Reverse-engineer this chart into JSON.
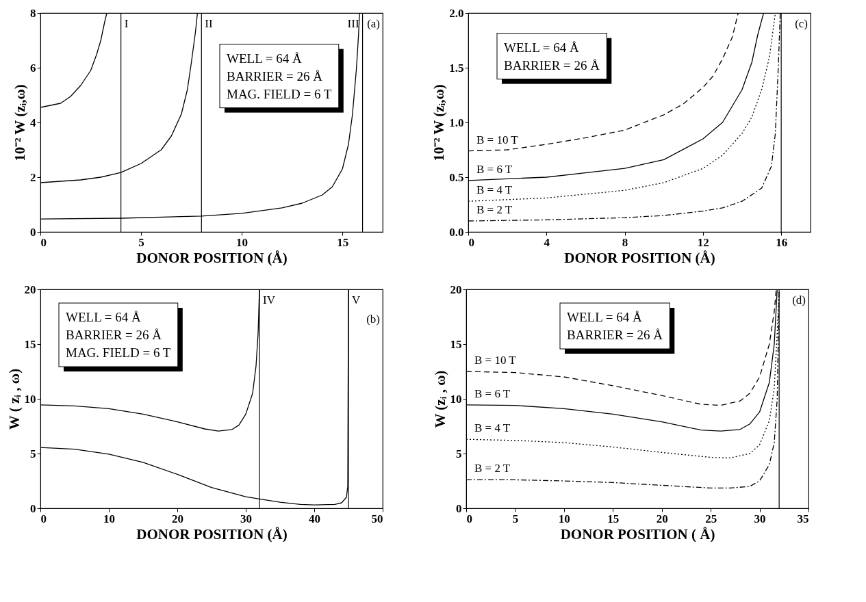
{
  "chart_data": [
    {
      "type": "line",
      "xlabel": "DONOR POSITION (Å)",
      "ylabel": "10⁻² W (zᵢ,ω)",
      "xlim": [
        0,
        17
      ],
      "ylim": [
        0,
        8
      ],
      "xticks": [
        0,
        5,
        10,
        15
      ],
      "yticks": [
        0,
        2,
        4,
        6,
        8
      ],
      "grid": false,
      "marker": "none",
      "annotations": [
        "WELL = 64 Å",
        "BARRIER = 26 Å",
        "MAG. FIELD = 6 T",
        "(a)"
      ],
      "ref_lines": [
        {
          "axis": "x",
          "value": 4,
          "label": "I"
        },
        {
          "axis": "x",
          "value": 8,
          "label": "II"
        },
        {
          "axis": "x",
          "value": 16,
          "label": "III"
        }
      ],
      "series": [
        {
          "color": "#000000",
          "line_style": "solid",
          "x": [
            0,
            1,
            1.5,
            2,
            2.5,
            2.8,
            3.0,
            3.2,
            3.3
          ],
          "values": [
            4.55,
            4.7,
            4.95,
            5.35,
            5.9,
            6.5,
            7.0,
            7.7,
            8
          ]
        },
        {
          "color": "#000000",
          "line_style": "solid",
          "x": [
            0,
            2,
            3,
            4,
            5,
            6,
            6.5,
            7,
            7.3,
            7.5,
            7.7,
            7.8
          ],
          "values": [
            1.8,
            1.9,
            2.0,
            2.17,
            2.5,
            3.0,
            3.5,
            4.3,
            5.2,
            6.2,
            7.3,
            8
          ]
        },
        {
          "color": "#000000",
          "line_style": "solid",
          "x": [
            0,
            4,
            8,
            10,
            12,
            13,
            14,
            14.5,
            15,
            15.3,
            15.5,
            15.7,
            15.8,
            15.85
          ],
          "values": [
            0.47,
            0.5,
            0.58,
            0.68,
            0.88,
            1.05,
            1.35,
            1.65,
            2.3,
            3.2,
            4.3,
            6,
            7.2,
            8
          ]
        }
      ]
    },
    {
      "type": "line",
      "xlabel": "DONOR POSITION (Å)",
      "ylabel": "10⁻² W (zᵢ,ω)",
      "xlim": [
        0,
        17.5
      ],
      "ylim": [
        0,
        2
      ],
      "xticks": [
        0,
        4,
        8,
        12,
        16
      ],
      "yticks": [
        {
          "value": 0,
          "label": "0.0"
        },
        0.5,
        {
          "value": 1,
          "label": "1.0"
        },
        1.5,
        {
          "value": 2,
          "label": "2.0"
        }
      ],
      "grid": false,
      "marker": "none",
      "annotations": [
        "WELL = 64 Å",
        "BARRIER = 26 Å",
        "(c)"
      ],
      "ref_lines": [
        {
          "axis": "x",
          "value": 16
        }
      ],
      "series": [
        {
          "name": "B = 10 T",
          "color": "#000000",
          "line_style": "dashed",
          "x": [
            0,
            2,
            4,
            6,
            8,
            10,
            11,
            12,
            12.5,
            13,
            13.5,
            13.8
          ],
          "values": [
            0.74,
            0.75,
            0.8,
            0.86,
            0.93,
            1.07,
            1.17,
            1.32,
            1.42,
            1.58,
            1.78,
            2.0
          ]
        },
        {
          "name": "B = 6 T",
          "color": "#000000",
          "line_style": "solid",
          "x": [
            0,
            4,
            8,
            10,
            12,
            13,
            14,
            14.5,
            14.8,
            15.1
          ],
          "values": [
            0.47,
            0.5,
            0.58,
            0.66,
            0.85,
            1.0,
            1.3,
            1.55,
            1.8,
            2.0
          ]
        },
        {
          "name": "B = 4 T",
          "color": "#000000",
          "line_style": "dotted",
          "x": [
            0,
            4,
            8,
            10,
            12,
            13,
            14,
            14.5,
            15,
            15.4,
            15.7
          ],
          "values": [
            0.28,
            0.31,
            0.38,
            0.45,
            0.58,
            0.7,
            0.9,
            1.05,
            1.3,
            1.6,
            2.0
          ]
        },
        {
          "name": "B = 2 T",
          "color": "#000000",
          "line_style": "dashdot",
          "x": [
            0,
            4,
            8,
            10,
            12,
            13,
            14,
            15,
            15.5,
            15.7,
            15.85,
            15.95
          ],
          "values": [
            0.1,
            0.11,
            0.13,
            0.15,
            0.19,
            0.22,
            0.28,
            0.4,
            0.6,
            0.9,
            1.5,
            2.0
          ]
        }
      ]
    },
    {
      "type": "line",
      "xlabel": "DONOR POSITION (Å)",
      "ylabel": "W ( zᵢ , ω)",
      "xlim": [
        0,
        50
      ],
      "ylim": [
        0,
        20
      ],
      "xticks": [
        0,
        10,
        20,
        30,
        40,
        50
      ],
      "yticks": [
        0,
        5,
        10,
        15,
        20
      ],
      "grid": false,
      "marker": "none",
      "annotations": [
        "WELL = 64 Å",
        "BARRIER = 26 Å",
        "MAG. FIELD = 6 T",
        "(b)"
      ],
      "ref_lines": [
        {
          "axis": "x",
          "value": 32,
          "label": "IV"
        },
        {
          "axis": "x",
          "value": 45,
          "label": "V"
        }
      ],
      "series": [
        {
          "color": "#000000",
          "line_style": "solid",
          "x": [
            0,
            5,
            10,
            15,
            20,
            24,
            26,
            28,
            29,
            30,
            31,
            31.5,
            31.8,
            32
          ],
          "values": [
            9.45,
            9.35,
            9.1,
            8.6,
            7.9,
            7.25,
            7.05,
            7.2,
            7.6,
            8.6,
            10.5,
            13,
            16,
            20
          ]
        },
        {
          "color": "#000000",
          "line_style": "solid",
          "x": [
            0,
            5,
            10,
            15,
            20,
            25,
            30,
            32,
            35,
            38,
            40,
            43,
            44,
            44.7,
            44.9,
            45
          ],
          "values": [
            5.55,
            5.4,
            4.95,
            4.2,
            3.1,
            1.9,
            1.05,
            0.85,
            0.55,
            0.35,
            0.3,
            0.35,
            0.5,
            1.0,
            2,
            20
          ]
        }
      ]
    },
    {
      "type": "line",
      "xlabel": "DONOR POSITION ( Å)",
      "ylabel": "W (zᵢ , ω)",
      "xlim": [
        0,
        35
      ],
      "ylim": [
        0,
        20
      ],
      "xticks": [
        0,
        5,
        10,
        15,
        20,
        25,
        30,
        35
      ],
      "yticks": [
        0,
        5,
        10,
        15,
        20
      ],
      "grid": false,
      "marker": "none",
      "annotations": [
        "WELL = 64 Å",
        "BARRIER = 26 Å",
        "(d)"
      ],
      "ref_lines": [
        {
          "axis": "x",
          "value": 32
        }
      ],
      "series": [
        {
          "name": "B = 10 T",
          "color": "#000000",
          "line_style": "dashed",
          "x": [
            0,
            5,
            10,
            15,
            20,
            24,
            26,
            28,
            29,
            30,
            31,
            31.5,
            31.7
          ],
          "values": [
            12.5,
            12.4,
            12.0,
            11.2,
            10.3,
            9.5,
            9.4,
            9.8,
            10.5,
            12,
            15,
            18,
            20
          ]
        },
        {
          "name": "B = 6 T",
          "color": "#000000",
          "line_style": "solid",
          "x": [
            0,
            5,
            10,
            15,
            20,
            24,
            26,
            28,
            29,
            30,
            31,
            31.5,
            31.8
          ],
          "values": [
            9.45,
            9.4,
            9.1,
            8.6,
            7.9,
            7.15,
            7.05,
            7.2,
            7.7,
            8.8,
            11.5,
            15,
            20
          ]
        },
        {
          "name": "B = 4 T",
          "color": "#000000",
          "line_style": "dotted",
          "x": [
            0,
            5,
            10,
            15,
            20,
            25,
            27,
            29,
            30,
            31,
            31.5,
            31.8,
            32
          ],
          "values": [
            6.3,
            6.2,
            6.0,
            5.6,
            5.1,
            4.65,
            4.6,
            5.0,
            5.8,
            8,
            11,
            16,
            20
          ]
        },
        {
          "name": "B = 2 T",
          "color": "#000000",
          "line_style": "dashdot",
          "x": [
            0,
            5,
            10,
            15,
            20,
            25,
            27,
            29,
            30,
            31,
            31.5,
            31.8,
            32
          ],
          "values": [
            2.6,
            2.6,
            2.5,
            2.35,
            2.1,
            1.85,
            1.85,
            2.0,
            2.5,
            4,
            6,
            10,
            20
          ]
        }
      ]
    }
  ]
}
